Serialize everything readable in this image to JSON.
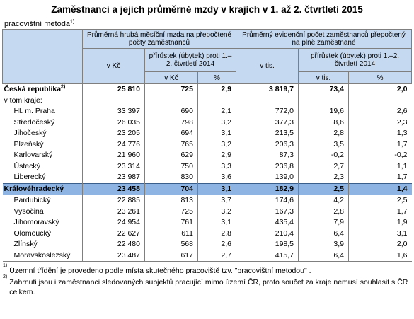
{
  "title": "Zaměstnanci a jejich průměrné mzdy v krajích v 1. až 2. čtvrtletí 2015",
  "subtitle": "pracovištní metoda",
  "subtitle_sup": "1)",
  "header": {
    "group1": "Průměrná hrubá měsíční mzda na přepočtené počty zaměstnanců",
    "group2": "Průměrný evidenční počet zaměstnanců přepočtený na plně zaměstnané",
    "col_v_kc": "v Kč",
    "col_v_tis": "v tis.",
    "sub_prirustek": "přírůstek (úbytek) proti 1.–2. čtvrtletí 2014",
    "unit_kc": "v Kč",
    "unit_pct": "%",
    "unit_tis": "v tis."
  },
  "rows": [
    {
      "name": "Česká republika",
      "sup": "2)",
      "v1": "25 810",
      "v2": "725",
      "v3": "2,9",
      "v4": "3 819,7",
      "v5": "73,4",
      "v6": "2,0",
      "style": "cr"
    },
    {
      "name": "v tom kraje:",
      "v1": "",
      "v2": "",
      "v3": "",
      "v4": "",
      "v5": "",
      "v6": "",
      "style": "sub"
    },
    {
      "name": "Hl. m. Praha",
      "v1": "33 397",
      "v2": "690",
      "v3": "2,1",
      "v4": "772,0",
      "v5": "19,6",
      "v6": "2,6",
      "style": ""
    },
    {
      "name": "Středočeský",
      "v1": "26 035",
      "v2": "798",
      "v3": "3,2",
      "v4": "377,3",
      "v5": "8,6",
      "v6": "2,3",
      "style": ""
    },
    {
      "name": "Jihočeský",
      "v1": "23 205",
      "v2": "694",
      "v3": "3,1",
      "v4": "213,5",
      "v5": "2,8",
      "v6": "1,3",
      "style": ""
    },
    {
      "name": "Plzeňský",
      "v1": "24 776",
      "v2": "765",
      "v3": "3,2",
      "v4": "206,3",
      "v5": "3,5",
      "v6": "1,7",
      "style": ""
    },
    {
      "name": "Karlovarský",
      "v1": "21 960",
      "v2": "629",
      "v3": "2,9",
      "v4": "87,3",
      "v5": "-0,2",
      "v6": "-0,2",
      "style": ""
    },
    {
      "name": "Ústecký",
      "v1": "23 314",
      "v2": "750",
      "v3": "3,3",
      "v4": "236,8",
      "v5": "2,7",
      "v6": "1,1",
      "style": ""
    },
    {
      "name": "Liberecký",
      "v1": "23 987",
      "v2": "830",
      "v3": "3,6",
      "v4": "139,0",
      "v5": "2,3",
      "v6": "1,7",
      "style": ""
    },
    {
      "name": "Královéhradecký",
      "v1": "23 458",
      "v2": "704",
      "v3": "3,1",
      "v4": "182,9",
      "v5": "2,5",
      "v6": "1,4",
      "style": "hl"
    },
    {
      "name": "Pardubický",
      "v1": "22 885",
      "v2": "813",
      "v3": "3,7",
      "v4": "174,6",
      "v5": "4,2",
      "v6": "2,5",
      "style": ""
    },
    {
      "name": "Vysočina",
      "v1": "23 261",
      "v2": "725",
      "v3": "3,2",
      "v4": "167,3",
      "v5": "2,8",
      "v6": "1,7",
      "style": ""
    },
    {
      "name": "Jihomoravský",
      "v1": "24 954",
      "v2": "761",
      "v3": "3,1",
      "v4": "435,4",
      "v5": "7,9",
      "v6": "1,9",
      "style": ""
    },
    {
      "name": "Olomoucký",
      "v1": "22 627",
      "v2": "611",
      "v3": "2,8",
      "v4": "210,4",
      "v5": "6,4",
      "v6": "3,1",
      "style": ""
    },
    {
      "name": "Zlínský",
      "v1": "22 480",
      "v2": "568",
      "v3": "2,6",
      "v4": "198,5",
      "v5": "3,9",
      "v6": "2,0",
      "style": ""
    },
    {
      "name": "Moravskoslezský",
      "v1": "23 487",
      "v2": "617",
      "v3": "2,7",
      "v4": "415,7",
      "v5": "6,4",
      "v6": "1,6",
      "style": "last"
    }
  ],
  "notes": [
    {
      "sup": "1)",
      "text": "Územní třídění je provedeno podle místa skutečného pracoviště tzv. \"pracovištní metodou\" ."
    },
    {
      "sup": "2)",
      "text": "Zahrnuti jsou i zaměstnanci sledovaných subjektů pracující mimo území ČR, proto součet za kraje nemusí souhlasit s ČR celkem."
    }
  ],
  "colors": {
    "header_bg": "#c5d9f1",
    "highlight_bg": "#8db4e2"
  }
}
